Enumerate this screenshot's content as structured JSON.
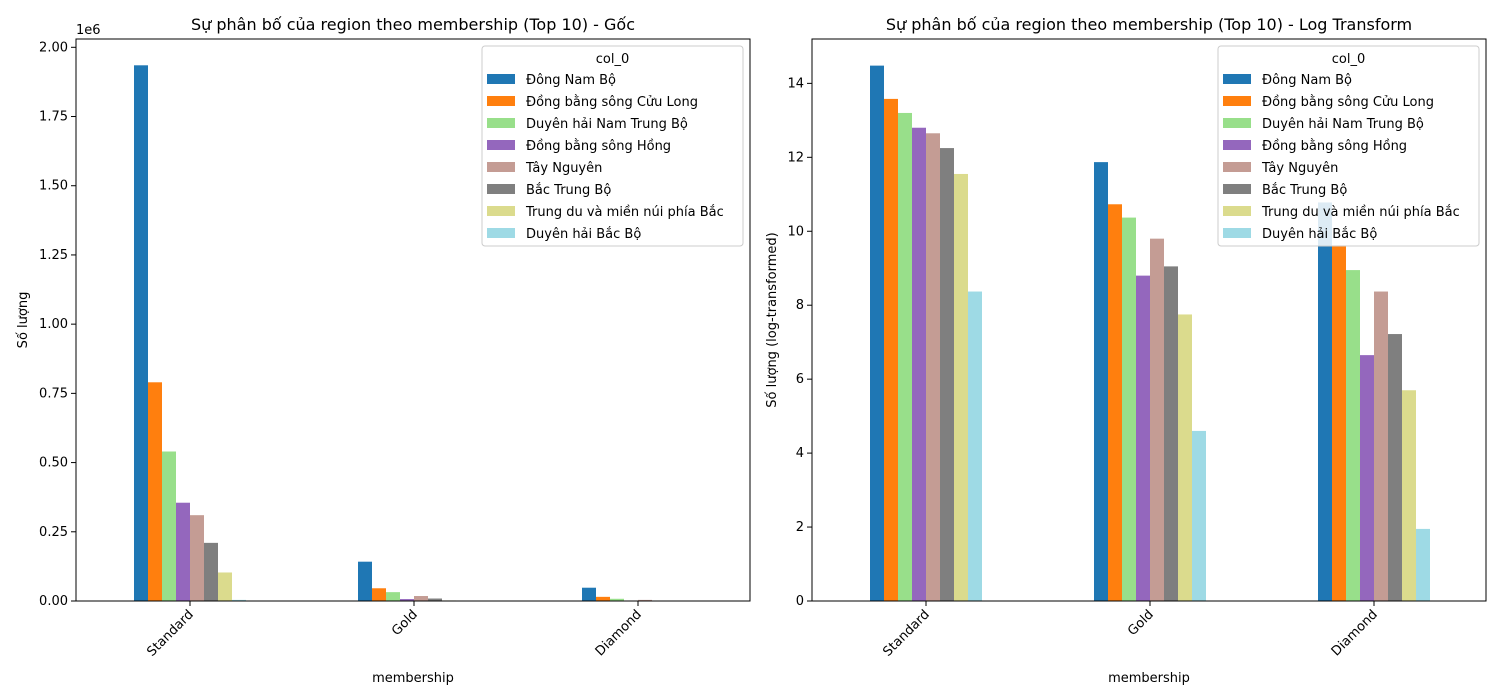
{
  "chart_data": [
    {
      "type": "bar",
      "title": "Sự phân bố của region theo membership (Top 10) - Gốc",
      "xlabel": "membership",
      "ylabel": "Số lượng",
      "offset_label": "1e6",
      "ylim": [
        0,
        2.03
      ],
      "yticks": [
        "0.00",
        "0.25",
        "0.50",
        "0.75",
        "1.00",
        "1.25",
        "1.50",
        "1.75",
        "2.00"
      ],
      "ytick_values": [
        0,
        0.25,
        0.5,
        0.75,
        1.0,
        1.25,
        1.5,
        1.75,
        2.0
      ],
      "categories": [
        "Standard",
        "Gold",
        "Diamond"
      ],
      "legend_title": "col_0",
      "legend_position": "top-right",
      "series": [
        {
          "name": "Đông Nam Bộ",
          "color": "#1f77b4",
          "values": [
            1.935,
            0.142,
            0.048
          ]
        },
        {
          "name": "Đồng bằng sông Cửu Long",
          "color": "#ff7f0e",
          "values": [
            0.79,
            0.046,
            0.015
          ]
        },
        {
          "name": "Duyên hải Nam Trung Bộ",
          "color": "#98df8a",
          "values": [
            0.54,
            0.032,
            0.008
          ]
        },
        {
          "name": "Đồng bằng sông Hồng",
          "color": "#9467bd",
          "values": [
            0.355,
            0.007,
            0.001
          ]
        },
        {
          "name": "Tây Nguyên",
          "color": "#c49c94",
          "values": [
            0.31,
            0.018,
            0.004
          ]
        },
        {
          "name": "Bắc Trung Bộ",
          "color": "#7f7f7f",
          "values": [
            0.21,
            0.009,
            0.001
          ]
        },
        {
          "name": "Trung du và miền núi phía Bắc",
          "color": "#dbdb8d",
          "values": [
            0.103,
            0.002,
            0.0003
          ]
        },
        {
          "name": "Duyên hải Bắc Bộ",
          "color": "#9edae5",
          "values": [
            0.004,
            0.0001,
            1e-05
          ]
        }
      ]
    },
    {
      "type": "bar",
      "title": "Sự phân bố của region theo membership (Top 10) - Log Transform",
      "xlabel": "membership",
      "ylabel": "Số lượng (log-transformed)",
      "ylim": [
        0,
        15.2
      ],
      "yticks": [
        "0",
        "2",
        "4",
        "6",
        "8",
        "10",
        "12",
        "14"
      ],
      "ytick_values": [
        0,
        2,
        4,
        6,
        8,
        10,
        12,
        14
      ],
      "categories": [
        "Standard",
        "Gold",
        "Diamond"
      ],
      "legend_title": "col_0",
      "legend_position": "top-right",
      "series": [
        {
          "name": "Đông Nam Bộ",
          "color": "#1f77b4",
          "values": [
            14.48,
            11.87,
            10.78
          ]
        },
        {
          "name": "Đồng bằng sông Cửu Long",
          "color": "#ff7f0e",
          "values": [
            13.58,
            10.73,
            9.62
          ]
        },
        {
          "name": "Duyên hải Nam Trung Bộ",
          "color": "#98df8a",
          "values": [
            13.2,
            10.37,
            8.95
          ]
        },
        {
          "name": "Đồng bằng sông Hồng",
          "color": "#9467bd",
          "values": [
            12.8,
            8.8,
            6.65
          ]
        },
        {
          "name": "Tây Nguyên",
          "color": "#c49c94",
          "values": [
            12.65,
            9.8,
            8.37
          ]
        },
        {
          "name": "Bắc Trung Bộ",
          "color": "#7f7f7f",
          "values": [
            12.25,
            9.05,
            7.22
          ]
        },
        {
          "name": "Trung du và miền núi phía Bắc",
          "color": "#dbdb8d",
          "values": [
            11.55,
            7.75,
            5.7
          ]
        },
        {
          "name": "Duyên hải Bắc Bộ",
          "color": "#9edae5",
          "values": [
            8.37,
            4.6,
            1.95
          ]
        }
      ]
    }
  ]
}
